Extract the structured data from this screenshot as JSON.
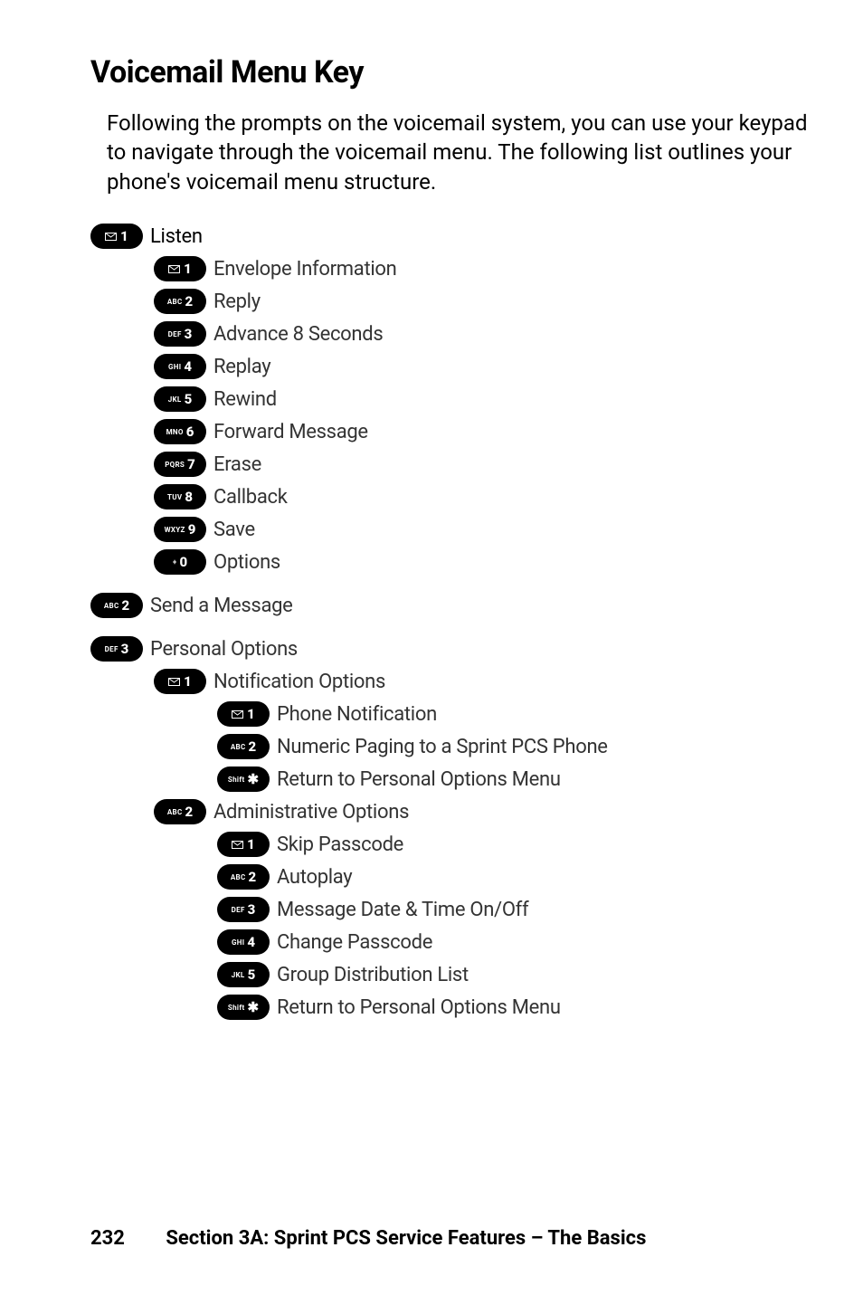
{
  "heading": "Voicemail Menu Key",
  "intro": "Following the prompts on the voicemail system, you can use your keypad to navigate through the voicemail menu. The following list outlines your phone's voicemail menu structure.",
  "listen": {
    "key": {
      "prefix": "",
      "digit": "1",
      "icon": "envelope"
    },
    "label": "Listen",
    "items": [
      {
        "key": {
          "prefix": "",
          "digit": "1",
          "icon": "envelope"
        },
        "label": "Envelope Information"
      },
      {
        "key": {
          "prefix": "ABC",
          "digit": "2"
        },
        "label": "Reply"
      },
      {
        "key": {
          "prefix": "DEF",
          "digit": "3"
        },
        "label": "Advance 8 Seconds"
      },
      {
        "key": {
          "prefix": "GHI",
          "digit": "4"
        },
        "label": "Replay"
      },
      {
        "key": {
          "prefix": "JKL",
          "digit": "5"
        },
        "label": "Rewind"
      },
      {
        "key": {
          "prefix": "MNO",
          "digit": "6"
        },
        "label": "Forward Message"
      },
      {
        "key": {
          "prefix": "PQRS",
          "digit": "7"
        },
        "label": "Erase"
      },
      {
        "key": {
          "prefix": "TUV",
          "digit": "8"
        },
        "label": "Callback"
      },
      {
        "key": {
          "prefix": "WXYZ",
          "digit": "9"
        },
        "label": "Save"
      },
      {
        "key": {
          "prefix": "+",
          "digit": "0"
        },
        "label": "Options"
      }
    ]
  },
  "send": {
    "key": {
      "prefix": "ABC",
      "digit": "2"
    },
    "label": "Send a Message"
  },
  "personal": {
    "key": {
      "prefix": "DEF",
      "digit": "3"
    },
    "label": "Personal Options",
    "notification": {
      "key": {
        "prefix": "",
        "digit": "1",
        "icon": "envelope"
      },
      "label": "Notification Options",
      "items": [
        {
          "key": {
            "prefix": "",
            "digit": "1",
            "icon": "envelope"
          },
          "label": "Phone Notification"
        },
        {
          "key": {
            "prefix": "ABC",
            "digit": "2"
          },
          "label": "Numeric Paging to a Sprint PCS Phone"
        },
        {
          "key": {
            "prefix": "Shift",
            "digit": "✱"
          },
          "label": "Return to Personal Options Menu"
        }
      ]
    },
    "admin": {
      "key": {
        "prefix": "ABC",
        "digit": "2"
      },
      "label": "Administrative Options",
      "items": [
        {
          "key": {
            "prefix": "",
            "digit": "1",
            "icon": "envelope"
          },
          "label": "Skip Passcode"
        },
        {
          "key": {
            "prefix": "ABC",
            "digit": "2"
          },
          "label": "Autoplay"
        },
        {
          "key": {
            "prefix": "DEF",
            "digit": "3"
          },
          "label": "Message Date & Time On/Off"
        },
        {
          "key": {
            "prefix": "GHI",
            "digit": "4"
          },
          "label": "Change Passcode"
        },
        {
          "key": {
            "prefix": "JKL",
            "digit": "5"
          },
          "label": "Group Distribution List"
        },
        {
          "key": {
            "prefix": "Shift",
            "digit": "✱"
          },
          "label": "Return to Personal Options Menu"
        }
      ]
    }
  },
  "footer": {
    "page": "232",
    "section": "Section 3A: Sprint PCS Service Features – The Basics"
  }
}
